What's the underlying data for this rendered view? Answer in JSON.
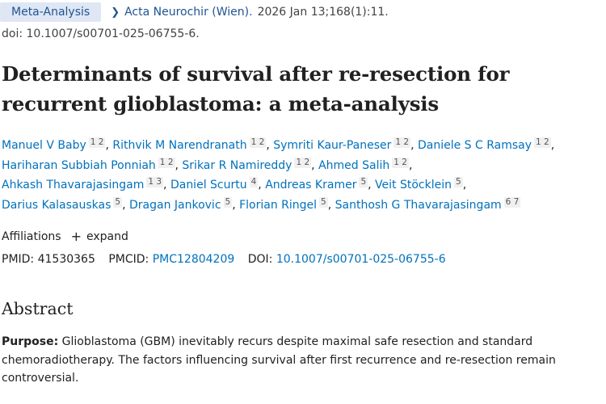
{
  "header": {
    "pub_type": "Meta-Analysis",
    "journal": "Acta Neurochir (Wien).",
    "citation": "2026 Jan 13;168(1):11.",
    "doi_line": "doi: 10.1007/s00701-025-06755-6."
  },
  "title": "Determinants of survival after re-resection for recurrent glioblastoma: a meta-analysis",
  "authors": [
    {
      "name": "Manuel V Baby",
      "aff": "1 2"
    },
    {
      "name": "Rithvik M Narendranath",
      "aff": "1 2"
    },
    {
      "name": "Symriti Kaur-Paneser",
      "aff": "1 2"
    },
    {
      "name": "Daniele S C Ramsay",
      "aff": "1 2"
    },
    {
      "name": "Hariharan Subbiah Ponniah",
      "aff": "1 2"
    },
    {
      "name": "Srikar R Namireddy",
      "aff": "1 2"
    },
    {
      "name": "Ahmed Salih",
      "aff": "1 2"
    },
    {
      "name": "Ahkash Thavarajasingam",
      "aff": "1 3"
    },
    {
      "name": "Daniel Scurtu",
      "aff": "4"
    },
    {
      "name": "Andreas Kramer",
      "aff": "5"
    },
    {
      "name": "Veit Stöcklein",
      "aff": "5"
    },
    {
      "name": "Darius Kalasauskas",
      "aff": "5"
    },
    {
      "name": "Dragan Jankovic",
      "aff": "5"
    },
    {
      "name": "Florian Ringel",
      "aff": "5"
    },
    {
      "name": "Santhosh G Thavarajasingam",
      "aff": "6 7"
    }
  ],
  "affiliations": {
    "label": "Affiliations",
    "expand_icon": "plus-icon",
    "expand_label": "expand"
  },
  "ids": {
    "pmid_label": "PMID:",
    "pmid": "41530365",
    "pmcid_label": "PMCID:",
    "pmcid": "PMC12804209",
    "doi_label": "DOI:",
    "doi": "10.1007/s00701-025-06755-6"
  },
  "abstract": {
    "heading": "Abstract",
    "purpose_label": "Purpose:",
    "purpose_text": "Glioblastoma (GBM) inevitably recurs despite maximal safe resection and standard chemoradiotherapy. The factors influencing survival after first recurrence and re-resection remain controversial."
  },
  "colors": {
    "link": "#0071bc",
    "badge_bg": "#dfe7f4",
    "text": "#212121"
  }
}
